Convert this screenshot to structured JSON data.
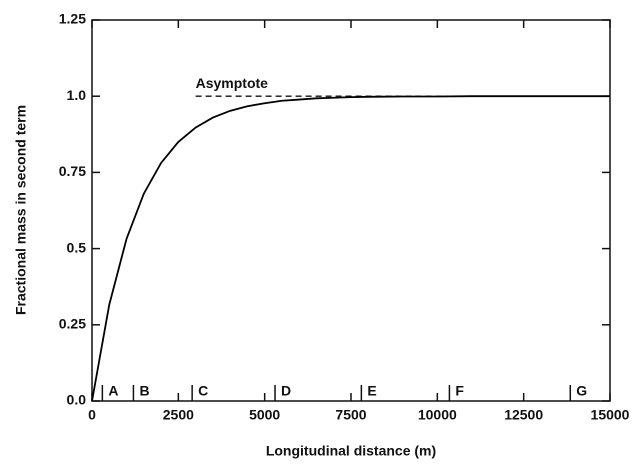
{
  "chart_data": {
    "type": "line",
    "xlabel": "Longitudinal distance (m)",
    "ylabel": "Fractional mass in second term",
    "x": [
      0,
      500,
      1000,
      1500,
      2000,
      2500,
      3000,
      3500,
      4000,
      4500,
      5000,
      5500,
      6000,
      6500,
      7000,
      7500,
      8000,
      9000,
      10000,
      11000,
      12000,
      13000,
      14000,
      15000
    ],
    "series": [
      {
        "color": "#000000",
        "values": [
          0,
          0.316,
          0.532,
          0.68,
          0.781,
          0.85,
          0.897,
          0.93,
          0.952,
          0.967,
          0.977,
          0.985,
          0.989,
          0.993,
          0.995,
          0.997,
          0.998,
          0.999,
          0.999,
          1.0,
          1.0,
          1.0,
          1.0,
          1.0
        ]
      }
    ],
    "asymptote": {
      "label": "Asymptote",
      "value": 1.0,
      "x_start": 3000
    },
    "zones": [
      {
        "label": "A",
        "x": 300
      },
      {
        "label": "B",
        "x": 1200
      },
      {
        "label": "C",
        "x": 2900
      },
      {
        "label": "D",
        "x": 5300
      },
      {
        "label": "E",
        "x": 7800
      },
      {
        "label": "F",
        "x": 10350
      },
      {
        "label": "G",
        "x": 13850
      }
    ],
    "xlim": [
      0,
      15000
    ],
    "xticks": [
      0,
      2500,
      5000,
      7500,
      10000,
      12500,
      15000
    ],
    "ylim": [
      0,
      1.25
    ],
    "yticks": [
      {
        "value": 0,
        "label": "0.0"
      },
      0.25,
      0.5,
      0.75,
      {
        "value": 1,
        "label": "1.0"
      },
      1.25
    ]
  }
}
